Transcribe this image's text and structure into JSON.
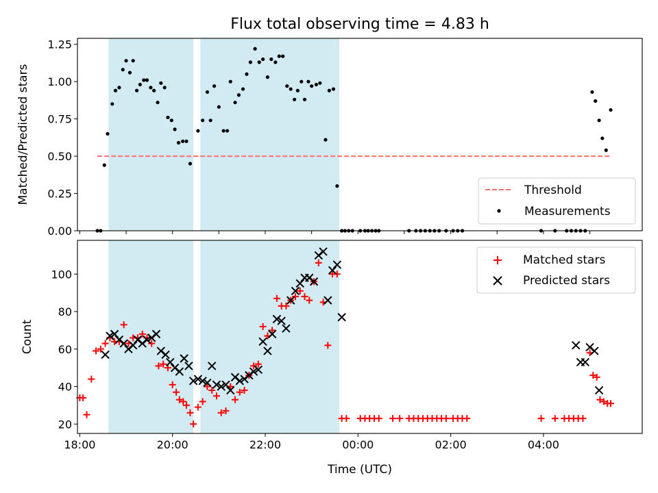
{
  "chart_data": {
    "title": "Flux total observing time = 4.83 h",
    "xlabel": "Time (UTC)",
    "x_unit": "hours since 18:00 UTC",
    "xlim": [
      -0.05,
      12.13
    ],
    "xtick_labels": [
      {
        "x": 0,
        "label": "18:00"
      },
      {
        "x": 2,
        "label": "20:00"
      },
      {
        "x": 4,
        "label": "22:00"
      },
      {
        "x": 6,
        "label": "00:00"
      },
      {
        "x": 8,
        "label": "02:00"
      },
      {
        "x": 10,
        "label": "04:00"
      }
    ],
    "xticks_top_only": [
      1,
      3,
      5,
      7,
      9,
      11
    ],
    "shaded_intervals": [
      [
        0.62,
        2.45
      ],
      [
        2.6,
        5.6
      ]
    ],
    "shade_color": "#add8e6",
    "panels": [
      {
        "type": "scatter",
        "ylabel": "Matched/Predicted stars",
        "ylim": [
          0,
          1.29
        ],
        "yticks": [
          0,
          0.25,
          0.5,
          0.75,
          1.0,
          1.25
        ],
        "ytick_labels": [
          "0.00",
          "0.25",
          "0.50",
          "0.75",
          "1.00",
          "1.25"
        ],
        "legend": "lower right",
        "threshold": {
          "name": "Threshold",
          "value": 0.5,
          "x_range": [
            0.38,
            11.45
          ],
          "color": "#ff7070"
        },
        "series": [
          {
            "name": "Measurements",
            "marker": "dot",
            "color": "#000000",
            "x": [
              0.38,
              0.45,
              0.53,
              0.6,
              0.7,
              0.77,
              0.85,
              0.93,
              1.0,
              1.08,
              1.15,
              1.23,
              1.3,
              1.38,
              1.45,
              1.53,
              1.6,
              1.68,
              1.75,
              1.83,
              1.9,
              1.98,
              2.05,
              2.13,
              2.22,
              2.3,
              2.38,
              2.55,
              2.65,
              2.75,
              2.82,
              2.9,
              3.0,
              3.1,
              3.18,
              3.25,
              3.35,
              3.43,
              3.52,
              3.6,
              3.68,
              3.78,
              3.87,
              3.95,
              4.05,
              4.13,
              4.22,
              4.3,
              4.38,
              4.47,
              4.55,
              4.63,
              4.7,
              4.78,
              4.85,
              4.93,
              5.0,
              5.1,
              5.18,
              5.3,
              5.38,
              5.47,
              5.55,
              5.65,
              5.72,
              5.8,
              5.88,
              6.05,
              6.15,
              6.22,
              6.3,
              6.38,
              6.45,
              7.1,
              7.25,
              7.35,
              7.45,
              7.55,
              7.65,
              7.75,
              7.9,
              8.05,
              8.15,
              8.25,
              9.95,
              10.25,
              10.5,
              10.6,
              10.7,
              10.8,
              10.9,
              11.05,
              11.12,
              11.2,
              11.27,
              11.35,
              11.45
            ],
            "y": [
              0.0,
              0.0,
              0.44,
              0.65,
              0.85,
              0.94,
              0.96,
              1.08,
              1.14,
              1.06,
              1.14,
              0.94,
              0.98,
              1.01,
              1.01,
              0.96,
              0.94,
              0.86,
              0.99,
              0.96,
              0.76,
              0.74,
              0.68,
              0.59,
              0.6,
              0.6,
              0.45,
              0.67,
              0.74,
              0.93,
              0.74,
              0.97,
              0.83,
              0.67,
              0.67,
              1.0,
              0.86,
              0.91,
              0.95,
              1.05,
              1.13,
              1.22,
              1.13,
              1.15,
              1.03,
              1.15,
              1.13,
              1.17,
              1.17,
              0.97,
              0.95,
              0.88,
              0.94,
              1.0,
              0.88,
              1.0,
              0.97,
              0.98,
              0.99,
              0.61,
              0.94,
              0.95,
              0.3,
              0.0,
              0.0,
              0.0,
              0.0,
              0.0,
              0.0,
              0.0,
              0.0,
              0.0,
              0.0,
              0.0,
              0.0,
              0.0,
              0.0,
              0.0,
              0.0,
              0.0,
              0.0,
              0.0,
              0.0,
              0.0,
              0.0,
              0.0,
              0.0,
              0.0,
              0.0,
              0.0,
              0.0,
              0.93,
              0.87,
              0.74,
              0.62,
              0.54,
              0.81
            ]
          }
        ]
      },
      {
        "type": "scatter",
        "ylabel": "Count",
        "ylim": [
          15,
          118
        ],
        "yticks": [
          20,
          40,
          60,
          80,
          100
        ],
        "ytick_labels": [
          "20",
          "40",
          "60",
          "80",
          "100"
        ],
        "legend": "upper right",
        "series": [
          {
            "name": "Matched stars",
            "marker": "plus",
            "color": "#ff0000",
            "x": [
              0.0,
              0.07,
              0.15,
              0.25,
              0.35,
              0.45,
              0.55,
              0.65,
              0.75,
              0.85,
              0.95,
              1.05,
              1.15,
              1.25,
              1.35,
              1.45,
              1.55,
              1.7,
              1.8,
              1.9,
              2.0,
              2.08,
              2.15,
              2.23,
              2.3,
              2.38,
              2.45,
              2.55,
              2.65,
              2.75,
              2.85,
              2.95,
              3.05,
              3.15,
              3.25,
              3.35,
              3.45,
              3.55,
              3.65,
              3.75,
              3.85,
              3.95,
              4.05,
              4.15,
              4.25,
              4.35,
              4.45,
              4.55,
              4.65,
              4.75,
              4.85,
              4.95,
              5.05,
              5.15,
              5.25,
              5.35,
              5.45,
              5.55,
              5.65,
              5.75,
              6.05,
              6.15,
              6.25,
              6.35,
              6.45,
              6.75,
              6.9,
              7.1,
              7.2,
              7.3,
              7.4,
              7.5,
              7.6,
              7.7,
              7.8,
              7.9,
              8.05,
              8.15,
              8.25,
              8.35,
              9.95,
              10.25,
              10.45,
              10.55,
              10.65,
              10.75,
              10.85,
              11.0,
              11.07,
              11.15,
              11.22,
              11.3,
              11.38,
              11.45
            ],
            "y": [
              34,
              34,
              25,
              44,
              59,
              60,
              63,
              66,
              64,
              64,
              73,
              63,
              66,
              66,
              68,
              66,
              63,
              51,
              52,
              50,
              41,
              37,
              33,
              32,
              30,
              26,
              20,
              29,
              32,
              40,
              38,
              35,
              26,
              27,
              40,
              33,
              37,
              38,
              46,
              51,
              52,
              72,
              67,
              70,
              87,
              83,
              83,
              86,
              88,
              91,
              88,
              86,
              96,
              106,
              85,
              62,
              100,
              100,
              23,
              23,
              23,
              23,
              23,
              23,
              23,
              23,
              23,
              23,
              23,
              23,
              23,
              23,
              23,
              23,
              23,
              23,
              23,
              23,
              23,
              23,
              23,
              23,
              23,
              23,
              23,
              23,
              23,
              58,
              46,
              45,
              33,
              32,
              31,
              31
            ]
          },
          {
            "name": "Predicted stars",
            "marker": "x",
            "color": "#000000",
            "x": [
              0.55,
              0.65,
              0.75,
              0.85,
              0.95,
              1.05,
              1.15,
              1.25,
              1.35,
              1.45,
              1.55,
              1.65,
              1.75,
              1.85,
              1.95,
              2.05,
              2.15,
              2.25,
              2.35,
              2.45,
              2.55,
              2.65,
              2.75,
              2.85,
              2.95,
              3.05,
              3.15,
              3.25,
              3.35,
              3.45,
              3.55,
              3.65,
              3.75,
              3.85,
              3.95,
              4.05,
              4.15,
              4.25,
              4.35,
              4.45,
              4.55,
              4.65,
              4.75,
              4.85,
              4.95,
              5.05,
              5.15,
              5.25,
              5.35,
              5.45,
              5.55,
              5.65,
              10.7,
              10.8,
              10.9,
              11.0,
              11.1,
              11.2
            ],
            "y": [
              57,
              67,
              68,
              65,
              63,
              60,
              62,
              65,
              63,
              65,
              66,
              68,
              59,
              57,
              53,
              50,
              48,
              55,
              51,
              43,
              44,
              43,
              42,
              51,
              41,
              40,
              41,
              38,
              45,
              43,
              44,
              46,
              48,
              49,
              64,
              59,
              68,
              76,
              75,
              71,
              86,
              91,
              95,
              98,
              98,
              96,
              110,
              112,
              86,
              102,
              105,
              77,
              62,
              53,
              53,
              61,
              59,
              38
            ]
          }
        ]
      }
    ]
  }
}
